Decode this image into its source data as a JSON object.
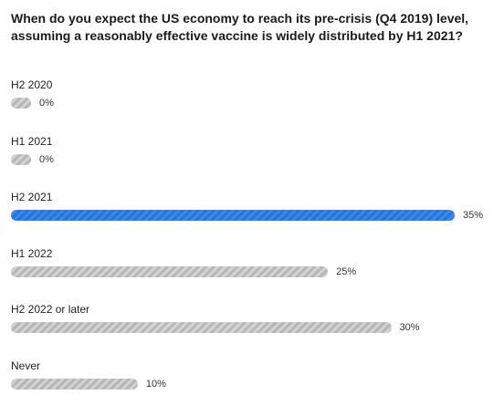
{
  "chart_data": {
    "type": "bar",
    "orientation": "horizontal",
    "title": "When do you expect the US economy to reach its pre-crisis (Q4 2019) level, assuming a reasonably effective vaccine is widely distributed by H1 2021?",
    "categories": [
      "H2 2020",
      "H1 2021",
      "H2 2021",
      "H1 2022",
      "H2 2022 or later",
      "Never"
    ],
    "values": [
      0,
      0,
      35,
      25,
      30,
      10
    ],
    "value_labels": [
      "0%",
      "0%",
      "35%",
      "25%",
      "30%",
      "10%"
    ],
    "unit": "%",
    "xlim": [
      0,
      35
    ],
    "grid": false,
    "legend": "none",
    "highlight_index": 2,
    "colors": {
      "default_bar": "#c4c4c4",
      "highlight_bar": "#2a7be4",
      "text": "#222222"
    }
  }
}
